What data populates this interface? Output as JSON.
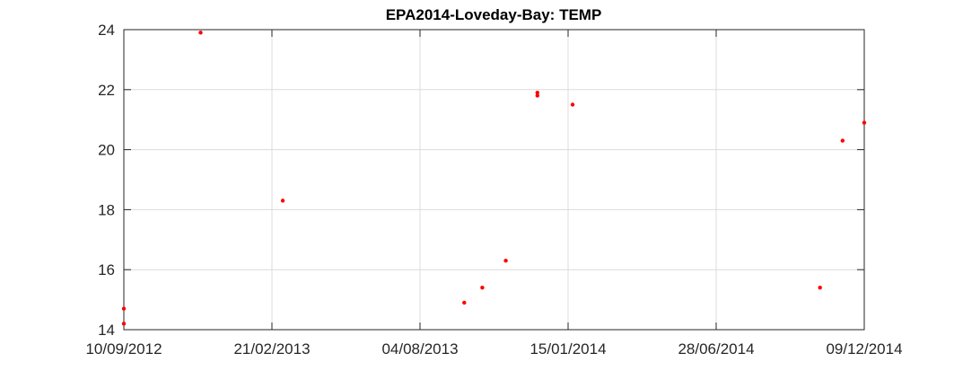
{
  "chart_data": {
    "type": "scatter",
    "title": "EPA2014-Loveday-Bay: TEMP",
    "xlabel": "",
    "ylabel": "",
    "x_type": "date",
    "xlim": [
      "2012-09-10",
      "2014-12-09"
    ],
    "ylim": [
      14,
      24
    ],
    "x_ticks": [
      "2012-09-10",
      "2013-02-21",
      "2013-08-04",
      "2014-01-15",
      "2014-06-28",
      "2014-12-09"
    ],
    "x_tick_labels": [
      "10/09/2012",
      "21/02/2013",
      "04/08/2013",
      "15/01/2014",
      "28/06/2014",
      "09/12/2014"
    ],
    "y_ticks": [
      14,
      16,
      18,
      20,
      22,
      24
    ],
    "y_tick_labels": [
      "14",
      "16",
      "18",
      "20",
      "22",
      "24"
    ],
    "grid": true,
    "marker_color": "#ff0000",
    "series": [
      {
        "points": [
          {
            "x": "2012-09-10",
            "y": 14.7
          },
          {
            "x": "2012-09-10",
            "y": 14.2
          },
          {
            "x": "2012-12-04",
            "y": 23.9
          },
          {
            "x": "2013-03-05",
            "y": 18.3
          },
          {
            "x": "2013-09-22",
            "y": 14.9
          },
          {
            "x": "2013-10-12",
            "y": 15.4
          },
          {
            "x": "2013-11-07",
            "y": 16.3
          },
          {
            "x": "2013-12-12",
            "y": 21.9
          },
          {
            "x": "2013-12-12",
            "y": 21.8
          },
          {
            "x": "2014-01-20",
            "y": 21.5
          },
          {
            "x": "2014-10-21",
            "y": 15.4
          },
          {
            "x": "2014-11-15",
            "y": 20.3
          },
          {
            "x": "2014-12-09",
            "y": 20.9
          }
        ]
      }
    ]
  }
}
